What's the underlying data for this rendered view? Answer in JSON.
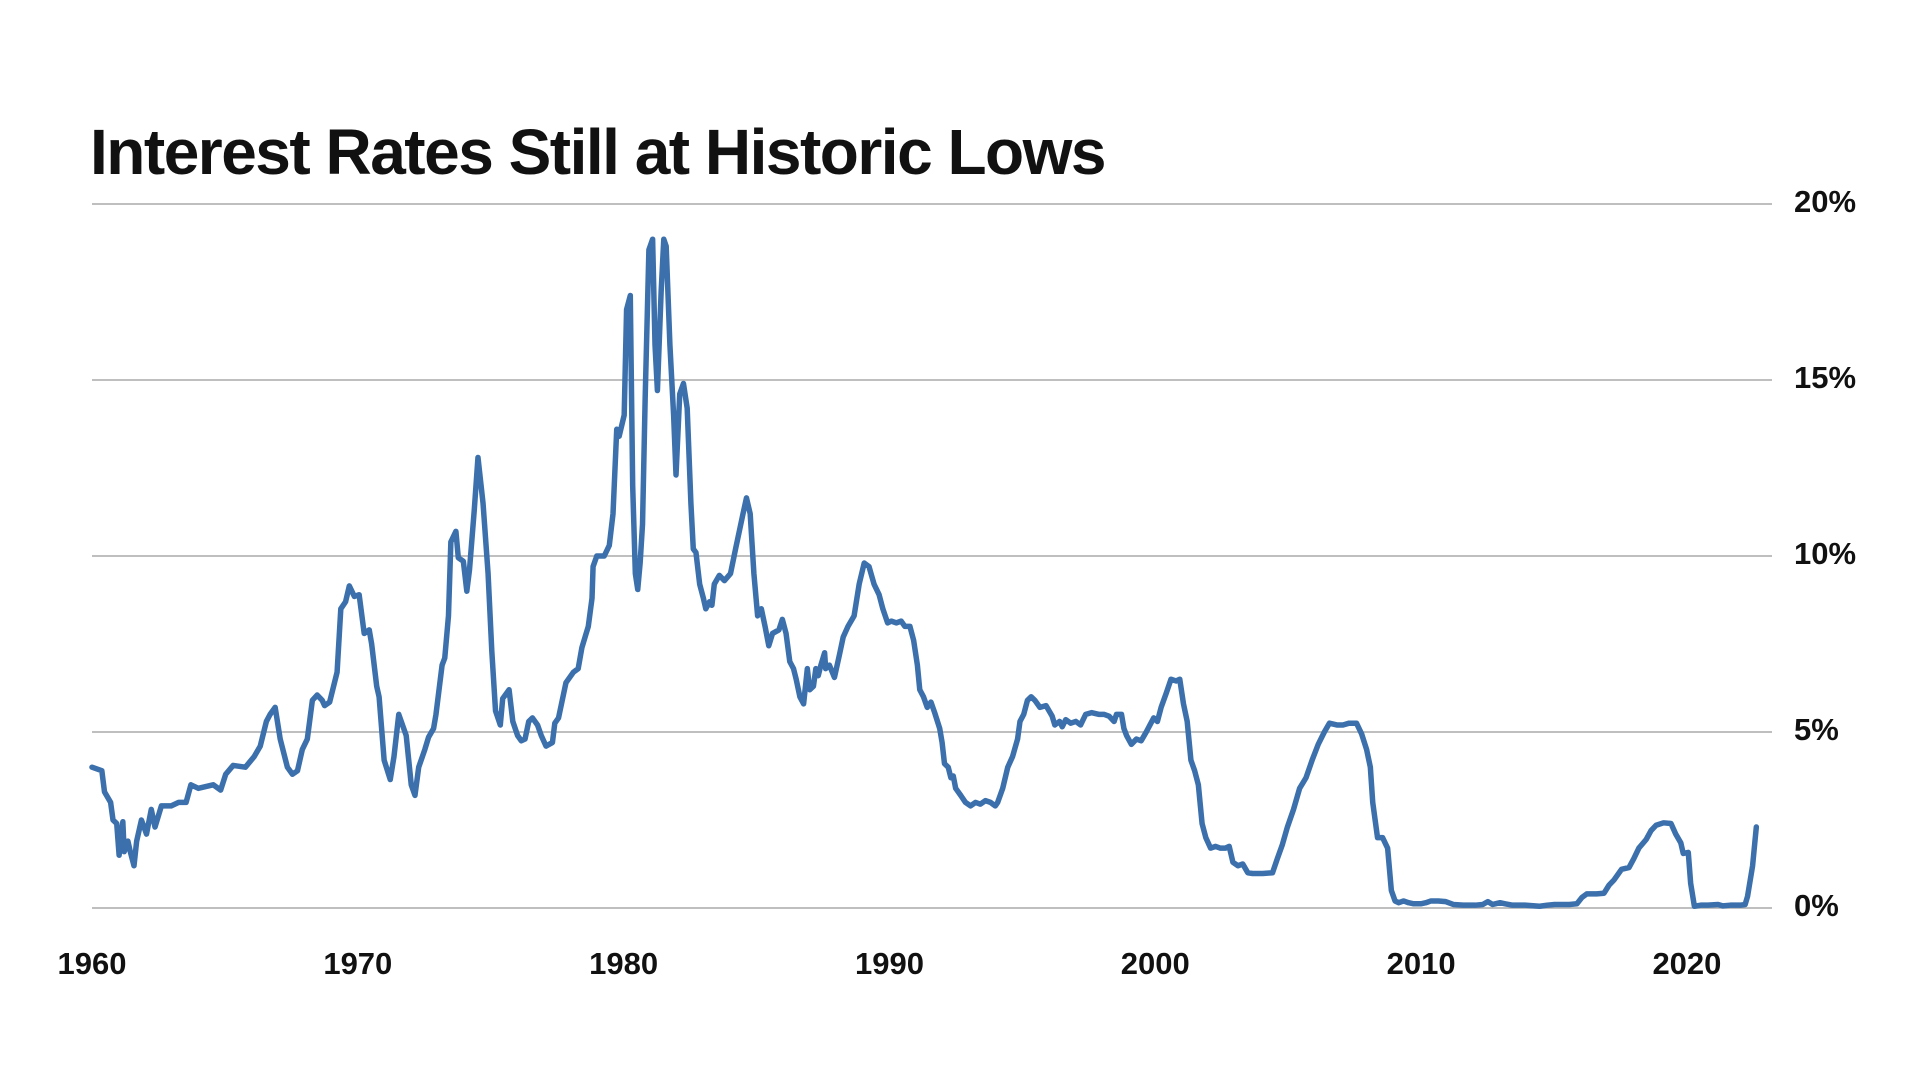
{
  "chart_data": {
    "type": "line",
    "title": "Interest Rates Still at Historic Lows",
    "color": "#3b70ac",
    "grid": true,
    "y_axis_side": "right",
    "xlim": [
      1960,
      2023.2
    ],
    "xticks": [
      1960,
      1970,
      1980,
      1990,
      2000,
      2010,
      2020
    ],
    "ylim": [
      0,
      20
    ],
    "yticks": [
      {
        "value": 0,
        "label": "0%"
      },
      {
        "value": 5,
        "label": "5%"
      },
      {
        "value": 10,
        "label": "10%"
      },
      {
        "value": 15,
        "label": "15%"
      },
      {
        "value": 20,
        "label": "20%"
      }
    ],
    "x": [
      1960.0,
      1960.37,
      1960.47,
      1960.7,
      1960.79,
      1960.93,
      1961.02,
      1961.16,
      1961.21,
      1961.35,
      1961.44,
      1961.58,
      1961.68,
      1961.86,
      1962.05,
      1962.23,
      1962.37,
      1962.61,
      1962.98,
      1963.26,
      1963.54,
      1963.72,
      1964.0,
      1964.28,
      1964.56,
      1964.84,
      1965.03,
      1965.31,
      1965.77,
      1966.1,
      1966.33,
      1966.56,
      1966.7,
      1966.89,
      1967.08,
      1967.35,
      1967.54,
      1967.73,
      1967.91,
      1968.1,
      1968.29,
      1968.47,
      1968.66,
      1968.75,
      1968.94,
      1969.22,
      1969.36,
      1969.54,
      1969.68,
      1969.87,
      1970.05,
      1970.24,
      1970.43,
      1970.52,
      1970.71,
      1970.8,
      1970.99,
      1971.22,
      1971.36,
      1971.54,
      1971.82,
      1972.01,
      1972.15,
      1972.29,
      1972.52,
      1972.66,
      1972.85,
      1972.94,
      1973.17,
      1973.27,
      1973.41,
      1973.5,
      1973.69,
      1973.78,
      1973.97,
      1974.1,
      1974.2,
      1974.38,
      1974.52,
      1974.71,
      1974.9,
      1975.04,
      1975.18,
      1975.36,
      1975.45,
      1975.69,
      1975.83,
      1976.01,
      1976.15,
      1976.29,
      1976.43,
      1976.57,
      1976.76,
      1976.9,
      1977.08,
      1977.32,
      1977.41,
      1977.55,
      1977.69,
      1977.83,
      1978.11,
      1978.29,
      1978.43,
      1978.67,
      1978.81,
      1978.85,
      1978.99,
      1979.27,
      1979.46,
      1979.6,
      1979.74,
      1979.83,
      1980.02,
      1980.11,
      1980.25,
      1980.34,
      1980.44,
      1980.53,
      1980.62,
      1980.71,
      1980.81,
      1980.95,
      1981.09,
      1981.18,
      1981.27,
      1981.41,
      1981.51,
      1981.6,
      1981.74,
      1981.88,
      1981.97,
      1982.11,
      1982.25,
      1982.39,
      1982.53,
      1982.62,
      1982.72,
      1982.86,
      1983.0,
      1983.09,
      1983.23,
      1983.32,
      1983.41,
      1983.6,
      1983.79,
      1984.02,
      1984.21,
      1984.49,
      1984.62,
      1984.76,
      1984.9,
      1985.04,
      1985.18,
      1985.32,
      1985.46,
      1985.6,
      1985.84,
      1985.97,
      1986.11,
      1986.25,
      1986.39,
      1986.49,
      1986.63,
      1986.77,
      1986.91,
      1987.0,
      1987.14,
      1987.23,
      1987.32,
      1987.42,
      1987.56,
      1987.6,
      1987.74,
      1987.93,
      1988.12,
      1988.26,
      1988.44,
      1988.67,
      1988.86,
      1989.05,
      1989.23,
      1989.42,
      1989.61,
      1989.75,
      1989.93,
      1990.07,
      1990.26,
      1990.44,
      1990.58,
      1990.77,
      1990.91,
      1991.05,
      1991.14,
      1991.28,
      1991.42,
      1991.56,
      1991.7,
      1991.89,
      1991.98,
      1992.07,
      1992.21,
      1992.31,
      1992.4,
      1992.49,
      1992.68,
      1992.86,
      1993.05,
      1993.24,
      1993.42,
      1993.61,
      1993.8,
      1993.98,
      1994.07,
      1994.26,
      1994.45,
      1994.63,
      1994.82,
      1994.91,
      1995.05,
      1995.19,
      1995.33,
      1995.47,
      1995.66,
      1995.89,
      1996.12,
      1996.22,
      1996.4,
      1996.5,
      1996.63,
      1996.82,
      1997.01,
      1997.19,
      1997.38,
      1997.61,
      1997.89,
      1998.08,
      1998.26,
      1998.45,
      1998.54,
      1998.73,
      1998.82,
      1998.92,
      1999.1,
      1999.29,
      1999.47,
      1999.66,
      1999.8,
      1999.94,
      2000.08,
      2000.22,
      2000.41,
      2000.59,
      2000.78,
      2000.92,
      2001.06,
      2001.2,
      2001.34,
      2001.48,
      2001.62,
      2001.76,
      2001.9,
      2002.08,
      2002.27,
      2002.45,
      2002.64,
      2002.78,
      2002.92,
      2003.11,
      2003.29,
      2003.48,
      2003.66,
      2004.04,
      2004.41,
      2004.59,
      2004.78,
      2004.97,
      2005.2,
      2005.43,
      2005.67,
      2005.9,
      2006.13,
      2006.36,
      2006.55,
      2006.83,
      2007.06,
      2007.29,
      2007.57,
      2007.76,
      2007.95,
      2008.09,
      2008.18,
      2008.36,
      2008.55,
      2008.74,
      2008.88,
      2009.02,
      2009.16,
      2009.34,
      2009.53,
      2009.72,
      2009.99,
      2010.18,
      2010.37,
      2010.65,
      2010.93,
      2011.21,
      2011.58,
      2012.04,
      2012.32,
      2012.51,
      2012.69,
      2012.97,
      2013.16,
      2013.44,
      2013.9,
      2014.46,
      2014.74,
      2015.02,
      2015.58,
      2015.86,
      2016.05,
      2016.23,
      2016.6,
      2016.88,
      2017.07,
      2017.26,
      2017.54,
      2017.82,
      2018.0,
      2018.19,
      2018.47,
      2018.65,
      2018.84,
      2019.12,
      2019.4,
      2019.58,
      2019.77,
      2019.86,
      2020.05,
      2020.14,
      2020.28,
      2020.52,
      2020.79,
      2021.17,
      2021.35,
      2021.63,
      2022.01,
      2022.19,
      2022.28,
      2022.47,
      2022.61
    ],
    "values": [
      4.0,
      3.9,
      3.3,
      3.0,
      2.5,
      2.4,
      1.5,
      2.45,
      1.6,
      1.9,
      1.6,
      1.2,
      1.9,
      2.5,
      2.1,
      2.8,
      2.3,
      2.9,
      2.9,
      3.0,
      3.0,
      3.5,
      3.4,
      3.45,
      3.5,
      3.35,
      3.8,
      4.05,
      4.0,
      4.3,
      4.6,
      5.3,
      5.5,
      5.7,
      4.8,
      4.0,
      3.8,
      3.9,
      4.5,
      4.8,
      5.9,
      6.05,
      5.9,
      5.75,
      5.85,
      6.7,
      8.5,
      8.7,
      9.15,
      8.85,
      8.9,
      7.8,
      7.9,
      7.5,
      6.3,
      6.0,
      4.2,
      3.65,
      4.3,
      5.5,
      4.9,
      3.5,
      3.2,
      4.0,
      4.5,
      4.85,
      5.1,
      5.5,
      6.9,
      7.1,
      8.3,
      10.4,
      10.7,
      9.95,
      9.85,
      9.0,
      9.6,
      11.3,
      12.8,
      11.5,
      9.5,
      7.3,
      5.6,
      5.2,
      5.95,
      6.2,
      5.3,
      4.9,
      4.75,
      4.8,
      5.3,
      5.4,
      5.2,
      4.9,
      4.6,
      4.7,
      5.25,
      5.4,
      5.9,
      6.4,
      6.7,
      6.8,
      7.4,
      8.0,
      8.8,
      9.7,
      10.0,
      10.0,
      10.3,
      11.2,
      13.6,
      13.4,
      14.0,
      17.0,
      17.4,
      12.0,
      9.5,
      9.05,
      9.8,
      10.9,
      14.5,
      18.7,
      19.0,
      16.0,
      14.7,
      17.5,
      19.0,
      18.8,
      16.0,
      14.0,
      12.3,
      14.6,
      14.9,
      14.2,
      11.5,
      10.2,
      10.1,
      9.2,
      8.8,
      8.5,
      8.7,
      8.6,
      9.2,
      9.45,
      9.3,
      9.5,
      10.2,
      11.2,
      11.65,
      11.2,
      9.5,
      8.3,
      8.5,
      8.0,
      7.45,
      7.8,
      7.9,
      8.2,
      7.8,
      7.0,
      6.8,
      6.5,
      6.0,
      5.8,
      6.8,
      6.2,
      6.3,
      6.8,
      6.6,
      6.9,
      7.25,
      6.8,
      6.9,
      6.55,
      7.2,
      7.7,
      8.0,
      8.3,
      9.2,
      9.8,
      9.7,
      9.2,
      8.9,
      8.5,
      8.1,
      8.15,
      8.1,
      8.15,
      8.0,
      8.0,
      7.6,
      6.9,
      6.2,
      6.0,
      5.7,
      5.85,
      5.55,
      5.1,
      4.7,
      4.1,
      4.0,
      3.7,
      3.75,
      3.4,
      3.2,
      3.0,
      2.9,
      3.0,
      2.95,
      3.05,
      3.0,
      2.9,
      3.0,
      3.4,
      4.0,
      4.3,
      4.8,
      5.3,
      5.5,
      5.9,
      6.0,
      5.9,
      5.7,
      5.75,
      5.45,
      5.2,
      5.3,
      5.15,
      5.35,
      5.25,
      5.3,
      5.2,
      5.5,
      5.55,
      5.5,
      5.5,
      5.45,
      5.3,
      5.5,
      5.5,
      5.1,
      4.9,
      4.65,
      4.8,
      4.75,
      5.0,
      5.2,
      5.4,
      5.3,
      5.7,
      6.1,
      6.5,
      6.45,
      6.5,
      5.8,
      5.3,
      4.2,
      3.9,
      3.5,
      2.4,
      2.0,
      1.7,
      1.75,
      1.7,
      1.7,
      1.75,
      1.3,
      1.2,
      1.25,
      1.0,
      0.98,
      0.98,
      1.0,
      1.4,
      1.8,
      2.3,
      2.8,
      3.4,
      3.7,
      4.2,
      4.65,
      5.0,
      5.25,
      5.2,
      5.2,
      5.25,
      5.25,
      4.95,
      4.5,
      4.0,
      3.0,
      2.0,
      2.0,
      1.7,
      0.5,
      0.2,
      0.15,
      0.2,
      0.15,
      0.12,
      0.12,
      0.15,
      0.2,
      0.2,
      0.18,
      0.1,
      0.08,
      0.08,
      0.1,
      0.18,
      0.1,
      0.15,
      0.12,
      0.08,
      0.08,
      0.05,
      0.08,
      0.1,
      0.1,
      0.12,
      0.3,
      0.4,
      0.4,
      0.42,
      0.65,
      0.8,
      1.1,
      1.15,
      1.4,
      1.7,
      1.95,
      2.2,
      2.35,
      2.42,
      2.4,
      2.1,
      1.85,
      1.55,
      1.58,
      0.7,
      0.05,
      0.08,
      0.08,
      0.1,
      0.06,
      0.08,
      0.08,
      0.1,
      0.33,
      1.2,
      2.3
    ]
  }
}
